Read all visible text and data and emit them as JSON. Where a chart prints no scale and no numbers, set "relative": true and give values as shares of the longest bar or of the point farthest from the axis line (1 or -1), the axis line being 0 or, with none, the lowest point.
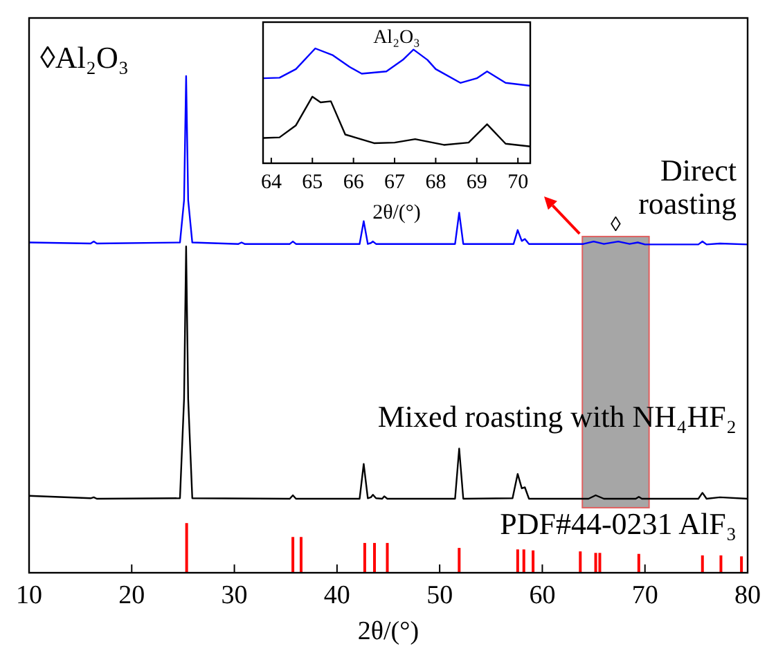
{
  "chart_data": [
    {
      "type": "line",
      "xlabel": "2θ/(°)",
      "xlim": [
        10,
        80
      ],
      "xticks": [
        10,
        20,
        30,
        40,
        50,
        60,
        70,
        80
      ],
      "relative": true,
      "grid": false,
      "annotations": [
        "◊Al₂O₃",
        "◊"
      ],
      "bands": [
        {
          "axis": "x",
          "from": 63.9,
          "to": 70.4,
          "color": "#a6a6a6"
        }
      ],
      "series": [
        {
          "name": "Direct roasting",
          "color": "#0000ff",
          "x": [
            10,
            16,
            16.3,
            16.6,
            24.7,
            25.1,
            25.3,
            25.5,
            25.9,
            30.4,
            30.7,
            31,
            35.4,
            35.7,
            36,
            42.2,
            42.6,
            43,
            43.3,
            43.5,
            43.8,
            51.5,
            51.9,
            52.3,
            57.2,
            57.6,
            58,
            58.3,
            58.7,
            64,
            65,
            66,
            67.4,
            68.5,
            69.3,
            70,
            75.2,
            75.6,
            76,
            77.3,
            80
          ],
          "values": [
            0.665,
            0.663,
            0.667,
            0.663,
            0.665,
            0.75,
            1.0,
            0.75,
            0.665,
            0.662,
            0.665,
            0.662,
            0.662,
            0.667,
            0.662,
            0.662,
            0.708,
            0.662,
            0.664,
            0.667,
            0.662,
            0.662,
            0.725,
            0.662,
            0.662,
            0.69,
            0.668,
            0.672,
            0.662,
            0.662,
            0.667,
            0.662,
            0.667,
            0.662,
            0.665,
            0.661,
            0.661,
            0.667,
            0.661,
            0.663,
            0.661
          ]
        },
        {
          "name": "Mixed roasting with NH₄HF₂",
          "color": "#000000",
          "x": [
            10,
            16,
            16.3,
            16.6,
            24.7,
            25.1,
            25.3,
            25.5,
            25.9,
            35.4,
            35.7,
            36,
            42.2,
            42.6,
            43,
            43.3,
            43.5,
            43.8,
            44.4,
            44.6,
            44.9,
            51.5,
            51.9,
            52.3,
            57.1,
            57.6,
            58,
            58.3,
            58.7,
            64.5,
            65.2,
            66,
            69.1,
            69.4,
            69.7,
            75.2,
            75.6,
            76,
            77.3,
            80
          ],
          "values": [
            0.155,
            0.15,
            0.152,
            0.149,
            0.15,
            0.35,
            0.657,
            0.35,
            0.15,
            0.149,
            0.156,
            0.149,
            0.149,
            0.219,
            0.15,
            0.152,
            0.157,
            0.15,
            0.149,
            0.154,
            0.149,
            0.149,
            0.25,
            0.149,
            0.15,
            0.199,
            0.17,
            0.172,
            0.149,
            0.149,
            0.156,
            0.149,
            0.149,
            0.153,
            0.149,
            0.149,
            0.161,
            0.149,
            0.152,
            0.149
          ]
        },
        {
          "name": "PDF#44-0231 AlF₃",
          "type": "bar",
          "color": "#ff0000",
          "x": [
            25.35,
            35.7,
            36.5,
            42.7,
            43.65,
            44.9,
            51.9,
            57.6,
            58.2,
            59.1,
            63.7,
            65.2,
            65.6,
            69.4,
            75.6,
            77.4,
            79.4
          ],
          "values": [
            0.1,
            0.072,
            0.072,
            0.06,
            0.06,
            0.06,
            0.05,
            0.047,
            0.047,
            0.045,
            0.043,
            0.04,
            0.04,
            0.038,
            0.035,
            0.035,
            0.033
          ]
        }
      ]
    },
    {
      "type": "line",
      "title": "Al₂O₃",
      "xlabel": "2θ/(°)",
      "xlim": [
        63.8,
        70.3
      ],
      "xticks": [
        64,
        65,
        66,
        67,
        68,
        69,
        70
      ],
      "relative": true,
      "grid": false,
      "series": [
        {
          "color": "#0000ff",
          "x": [
            63.8,
            64.2,
            64.6,
            65.07,
            65.5,
            65.9,
            66.2,
            66.8,
            67.2,
            67.46,
            67.8,
            68.0,
            68.6,
            69.0,
            69.25,
            69.7,
            70.3
          ],
          "values": [
            0.74,
            0.745,
            0.82,
            1.0,
            0.94,
            0.84,
            0.78,
            0.8,
            0.9,
            0.99,
            0.9,
            0.82,
            0.7,
            0.74,
            0.8,
            0.7,
            0.675
          ]
        },
        {
          "color": "#000000",
          "x": [
            63.8,
            64.2,
            64.6,
            65.0,
            65.2,
            65.45,
            65.8,
            66.5,
            67.0,
            67.5,
            68.2,
            68.8,
            69.25,
            69.7,
            70.3
          ],
          "values": [
            0.22,
            0.225,
            0.33,
            0.58,
            0.53,
            0.54,
            0.25,
            0.175,
            0.18,
            0.21,
            0.16,
            0.18,
            0.34,
            0.17,
            0.146
          ]
        }
      ]
    }
  ]
}
